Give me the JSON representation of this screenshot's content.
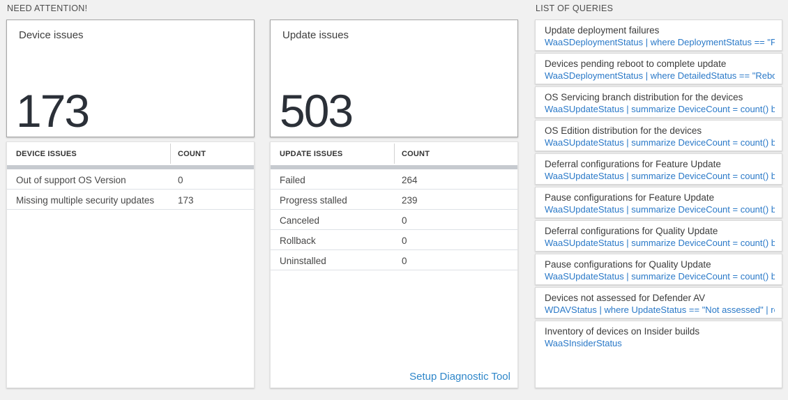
{
  "sections": {
    "need_attention": {
      "label": "NEED ATTENTION!"
    },
    "queries": {
      "label": "LIST OF QUERIES"
    }
  },
  "cards": [
    {
      "title": "Device issues",
      "count": "173",
      "table": {
        "name_header": "DEVICE ISSUES",
        "count_header": "COUNT",
        "rows": [
          {
            "name": "Out of support OS Version",
            "count": "0"
          },
          {
            "name": "Missing multiple security updates",
            "count": "173"
          }
        ]
      }
    },
    {
      "title": "Update issues",
      "count": "503",
      "table": {
        "name_header": "UPDATE ISSUES",
        "count_header": "COUNT",
        "rows": [
          {
            "name": "Failed",
            "count": "264"
          },
          {
            "name": "Progress stalled",
            "count": "239"
          },
          {
            "name": "Canceled",
            "count": "0"
          },
          {
            "name": "Rollback",
            "count": "0"
          },
          {
            "name": "Uninstalled",
            "count": "0"
          }
        ]
      },
      "footer_link": "Setup Diagnostic Tool"
    }
  ],
  "query_list": {
    "items": [
      {
        "title": "Update deployment failures",
        "query": "WaaSDeploymentStatus | where DeploymentStatus == \"Failed\" |..."
      },
      {
        "title": "Devices pending reboot to complete update",
        "query": "WaaSDeploymentStatus | where DetailedStatus == \"Reboot pend..."
      },
      {
        "title": "OS Servicing branch distribution for the devices",
        "query": "WaaSUpdateStatus | summarize DeviceCount = count() by OSSer..."
      },
      {
        "title": "OS Edition distribution for the devices",
        "query": "WaaSUpdateStatus | summarize DeviceCount = count() by OSEdit..."
      },
      {
        "title": "Deferral configurations for Feature Update",
        "query": "WaaSUpdateStatus | summarize DeviceCount = count() by Featur..."
      },
      {
        "title": "Pause configurations for Feature Update",
        "query": "WaaSUpdateStatus | summarize DeviceCount = count() by Featur..."
      },
      {
        "title": "Deferral configurations for Quality Update",
        "query": "WaaSUpdateStatus | summarize DeviceCount = count() by Qualit..."
      },
      {
        "title": "Pause configurations for Quality Update",
        "query": "WaaSUpdateStatus | summarize DeviceCount = count() by Qualit..."
      },
      {
        "title": "Devices not assessed for Defender AV",
        "query": "WDAVStatus | where UpdateStatus == \"Not assessed\" | render ta..."
      },
      {
        "title": "Inventory of devices on Insider builds",
        "query": "WaaSInsiderStatus"
      }
    ]
  },
  "colors": {
    "page_background": "#f1f1f1",
    "big_number": "#2b3038",
    "query_link_blue": "#2a79c8",
    "setup_link_blue": "#2e86c9",
    "tile_border": "#a7a7a7"
  }
}
